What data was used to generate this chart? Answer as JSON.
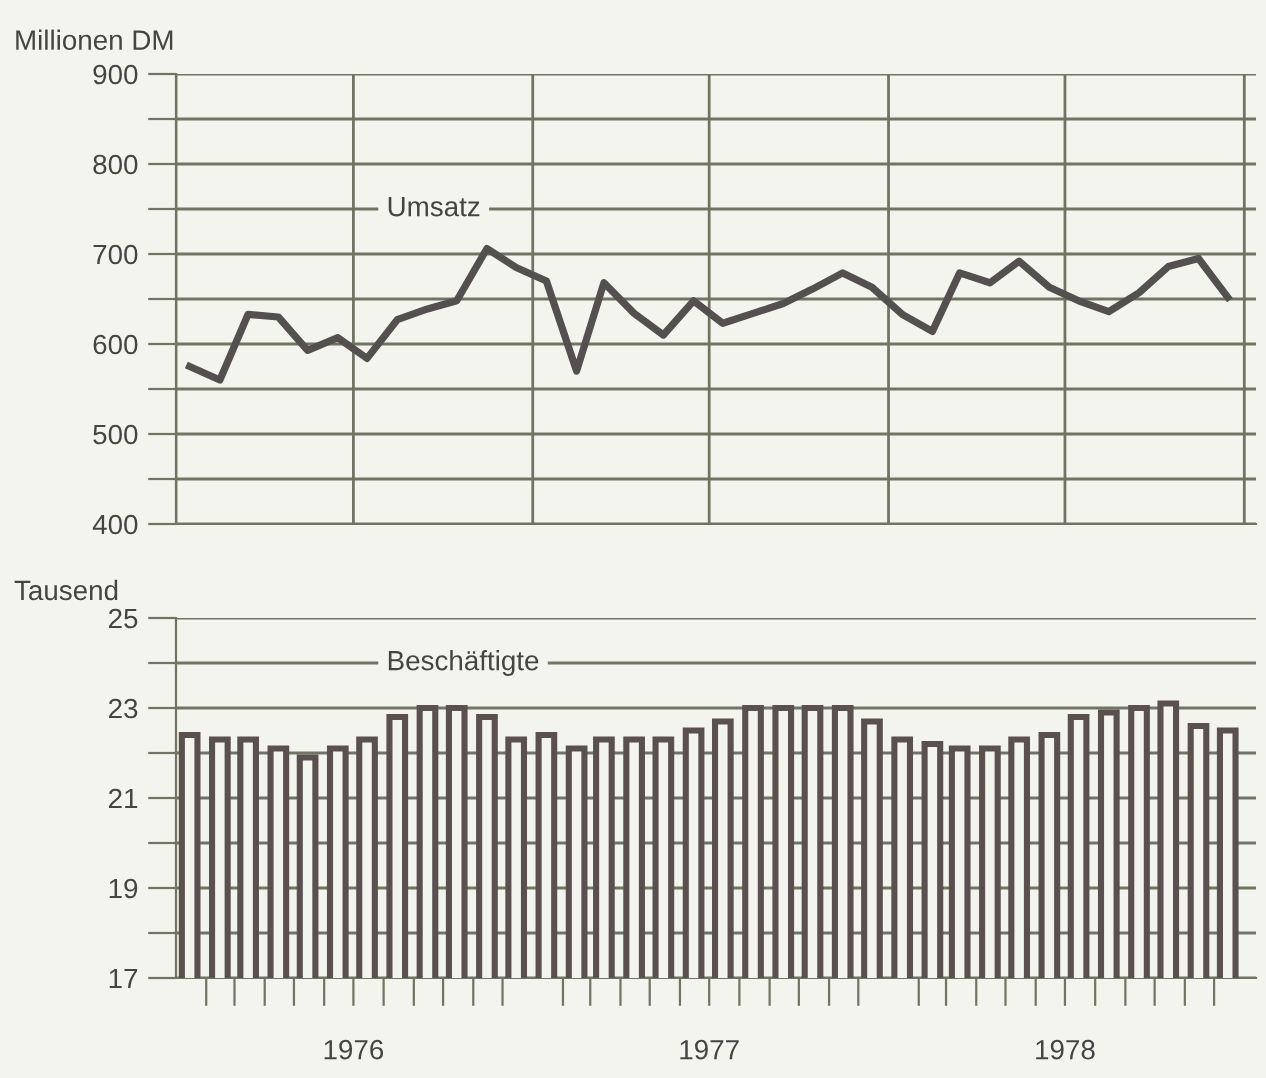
{
  "chart_data": [
    {
      "type": "line",
      "ylabel": "Millionen DM",
      "x": [
        "1976-01-15",
        "1976-02-15",
        "1976-03-15",
        "1976-04-15",
        "1976-05-15",
        "1976-06-15",
        "1976-07-15",
        "1976-08-15",
        "1976-09-15",
        "1976-10-15",
        "1976-11-15",
        "1976-12-15",
        "1977-01-15",
        "1977-02-15",
        "1977-03-15",
        "1977-04-15",
        "1977-05-15",
        "1977-06-15",
        "1977-07-15",
        "1977-08-15",
        "1977-09-15",
        "1977-10-15",
        "1977-11-15",
        "1977-12-15",
        "1978-01-15",
        "1978-02-15",
        "1978-03-15",
        "1978-04-15",
        "1978-05-15",
        "1978-06-15",
        "1978-07-15",
        "1978-08-15",
        "1978-09-15",
        "1978-10-15",
        "1978-11-15",
        "1978-12-15"
      ],
      "series": [
        {
          "name": "Umsatz",
          "color": "#555050",
          "values": [
            575,
            560,
            633,
            630,
            593,
            607,
            584,
            627,
            639,
            648,
            706,
            685,
            670,
            570,
            668,
            634,
            610,
            648,
            623,
            634,
            645,
            661,
            679,
            663,
            633,
            614,
            679,
            668,
            692,
            663,
            648,
            636,
            657,
            686,
            695,
            652
          ]
        }
      ],
      "xlim": [
        "1976-01-01",
        "1979-01-13"
      ],
      "xticks": [
        {
          "value": "1976-01-01",
          "label": null
        },
        {
          "value": "1976-07-01",
          "label": null
        },
        {
          "value": "1977-01-01",
          "label": null
        },
        {
          "value": "1977-07-01",
          "label": null
        },
        {
          "value": "1978-01-01",
          "label": null
        },
        {
          "value": "1978-07-01",
          "label": null
        },
        {
          "value": "1979-01-01",
          "label": null
        }
      ],
      "ylim": [
        400,
        900
      ],
      "yticks": [
        400,
        {
          "value": 450,
          "label": null
        },
        500,
        {
          "value": 550,
          "label": null
        },
        600,
        {
          "value": 650,
          "label": null
        },
        700,
        {
          "value": 750,
          "label": null
        },
        800,
        {
          "value": 850,
          "label": null
        },
        900
      ],
      "grid": true,
      "tick_labels": "y",
      "line_style": "solid",
      "marker": "none"
    },
    {
      "type": "bar",
      "ylabel": "Tausend",
      "x": [
        "1976-01-15",
        "1976-02-15",
        "1976-03-15",
        "1976-04-15",
        "1976-05-15",
        "1976-06-15",
        "1976-07-15",
        "1976-08-15",
        "1976-09-15",
        "1976-10-15",
        "1976-11-15",
        "1976-12-15",
        "1977-01-15",
        "1977-02-15",
        "1977-03-15",
        "1977-04-15",
        "1977-05-15",
        "1977-06-15",
        "1977-07-15",
        "1977-08-15",
        "1977-09-15",
        "1977-10-15",
        "1977-11-15",
        "1977-12-15",
        "1978-01-15",
        "1978-02-15",
        "1978-03-15",
        "1978-04-15",
        "1978-05-15",
        "1978-06-15",
        "1978-07-15",
        "1978-08-15",
        "1978-09-15",
        "1978-10-15",
        "1978-11-15",
        "1978-12-15"
      ],
      "series": [
        {
          "name": "Beschäftigte",
          "color": "#5a5050",
          "values": [
            22.4,
            22.3,
            22.3,
            22.1,
            21.9,
            22.1,
            22.3,
            22.8,
            23.0,
            23.0,
            22.8,
            22.3,
            22.4,
            22.1,
            22.3,
            22.3,
            22.3,
            22.5,
            22.7,
            23.0,
            23.0,
            23.0,
            23.0,
            22.7,
            22.3,
            22.2,
            22.1,
            22.1,
            22.3,
            22.4,
            22.8,
            22.9,
            23.0,
            23.1,
            22.6,
            22.5
          ]
        }
      ],
      "xlim": [
        "1976-01-01",
        "1979-01-13"
      ],
      "xticks": [
        {
          "value": "1976-02-01",
          "label": null
        },
        {
          "value": "1976-03-01",
          "label": null
        },
        {
          "value": "1976-04-01",
          "label": null
        },
        {
          "value": "1976-05-01",
          "label": null
        },
        {
          "value": "1976-06-01",
          "label": null
        },
        {
          "value": "1976-07-01",
          "label": "1976"
        },
        {
          "value": "1976-08-01",
          "label": null
        },
        {
          "value": "1976-09-01",
          "label": null
        },
        {
          "value": "1976-10-01",
          "label": null
        },
        {
          "value": "1976-11-01",
          "label": null
        },
        {
          "value": "1976-12-01",
          "label": null
        },
        {
          "value": "1977-02-01",
          "label": null
        },
        {
          "value": "1977-03-01",
          "label": null
        },
        {
          "value": "1977-04-01",
          "label": null
        },
        {
          "value": "1977-05-01",
          "label": null
        },
        {
          "value": "1977-06-01",
          "label": null
        },
        {
          "value": "1977-07-01",
          "label": "1977"
        },
        {
          "value": "1977-08-01",
          "label": null
        },
        {
          "value": "1977-09-01",
          "label": null
        },
        {
          "value": "1977-10-01",
          "label": null
        },
        {
          "value": "1977-11-01",
          "label": null
        },
        {
          "value": "1977-12-01",
          "label": null
        },
        {
          "value": "1978-02-01",
          "label": null
        },
        {
          "value": "1978-03-01",
          "label": null
        },
        {
          "value": "1978-04-01",
          "label": null
        },
        {
          "value": "1978-05-01",
          "label": null
        },
        {
          "value": "1978-06-01",
          "label": null
        },
        {
          "value": "1978-07-01",
          "label": "1978"
        },
        {
          "value": "1978-08-01",
          "label": null
        },
        {
          "value": "1978-09-01",
          "label": null
        },
        {
          "value": "1978-10-01",
          "label": null
        },
        {
          "value": "1978-11-01",
          "label": null
        },
        {
          "value": "1978-12-01",
          "label": null
        }
      ],
      "ylim": [
        17,
        25
      ],
      "yticks": [
        17,
        {
          "value": 18,
          "label": null
        },
        19,
        {
          "value": 20,
          "label": null
        },
        21,
        {
          "value": 22,
          "label": null
        },
        23,
        {
          "value": 24,
          "label": null
        },
        25
      ],
      "grid": "y"
    }
  ]
}
